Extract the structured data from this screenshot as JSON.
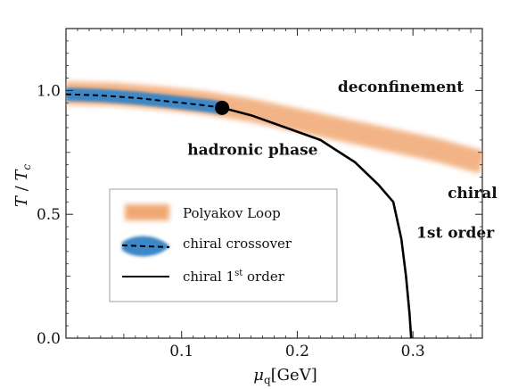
{
  "chart_data": {
    "type": "line",
    "xlabel_symbol": "μ",
    "xlabel_sub": "q",
    "xlabel_unit": "[GeV]",
    "ylabel_T": "T",
    "ylabel_slash": " / ",
    "ylabel_Tc": "T",
    "ylabel_sub": "c",
    "xlim": [
      0,
      0.36
    ],
    "ylim": [
      0,
      1.25
    ],
    "xticks": [
      0.1,
      0.2,
      0.3
    ],
    "xtick_labels": [
      "0.1",
      "0.2",
      "0.3"
    ],
    "yticks": [
      0.0,
      0.5,
      1.0
    ],
    "ytick_labels": [
      "0.0",
      "0.5",
      "1.0"
    ],
    "grid": false,
    "legend_placement": "lower-left",
    "series": [
      {
        "name": "Polyakov Loop",
        "style": "band",
        "color": "#f0a772",
        "x": [
          0.0,
          0.04,
          0.08,
          0.12,
          0.16,
          0.2,
          0.24,
          0.28,
          0.32,
          0.36
        ],
        "y": [
          0.99,
          0.985,
          0.97,
          0.95,
          0.92,
          0.88,
          0.84,
          0.8,
          0.76,
          0.71
        ]
      },
      {
        "name": "chiral crossover",
        "style": "dashed-band",
        "color": "#3a87c8",
        "x": [
          0.0,
          0.03,
          0.06,
          0.09,
          0.12,
          0.135
        ],
        "y": [
          0.985,
          0.98,
          0.97,
          0.955,
          0.94,
          0.93
        ]
      },
      {
        "name": "chiral 1st order",
        "style": "solid",
        "color": "#000000",
        "x": [
          0.135,
          0.16,
          0.19,
          0.22,
          0.25,
          0.27,
          0.283,
          0.29,
          0.294,
          0.297,
          0.2985
        ],
        "y": [
          0.93,
          0.9,
          0.85,
          0.8,
          0.71,
          0.62,
          0.55,
          0.4,
          0.25,
          0.1,
          0.0
        ]
      }
    ],
    "critical_point": {
      "x": 0.135,
      "y": 0.93
    },
    "annotations": [
      {
        "text": "deconfinement",
        "x": 0.235,
        "y": 0.995
      },
      {
        "text": "hadronic phase",
        "x": 0.105,
        "y": 0.74
      },
      {
        "text": "chiral",
        "x": 0.33,
        "y": 0.565
      },
      {
        "text": "1st order",
        "x": 0.303,
        "y": 0.405
      }
    ],
    "legend": {
      "entries": [
        "Polyakov Loop",
        "chiral crossover",
        "chiral 1st order"
      ],
      "order_label_pre": "chiral 1",
      "order_label_sup": "st",
      "order_label_post": " order"
    }
  }
}
